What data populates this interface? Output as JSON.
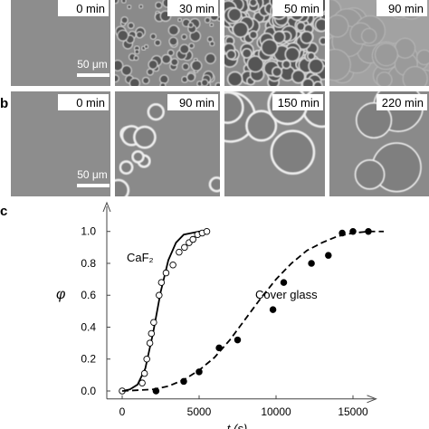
{
  "image_rows": [
    {
      "times": [
        "0 min",
        "30 min",
        "50 min",
        "90 min"
      ],
      "scale_bar": "50 μm"
    },
    {
      "label": "b",
      "times": [
        "0 min",
        "90 min",
        "150 min",
        "220 min"
      ],
      "scale_bar": "50 μm"
    }
  ],
  "chart_data": {
    "type": "scatter",
    "panel_label": "c",
    "xlabel": "t (s)",
    "ylabel": "φ",
    "xlim": [
      -1000,
      16500
    ],
    "ylim": [
      -0.05,
      1.18
    ],
    "xticks": [
      0,
      5000,
      10000,
      15000
    ],
    "yticks": [
      {
        "value": 0,
        "label": "0.0"
      },
      {
        "value": 0.2,
        "label": "0.2"
      },
      {
        "value": 0.4,
        "label": "0.4"
      },
      {
        "value": 0.6,
        "label": "0.6"
      },
      {
        "value": 0.8,
        "label": "0.8"
      },
      {
        "value": 1,
        "label": "1.0"
      }
    ],
    "series": [
      {
        "name": "CaF₂",
        "marker": "open",
        "color": "#000000",
        "line": "solid",
        "x": [
          0,
          1300,
          1450,
          1600,
          1800,
          1900,
          2050,
          2400,
          2550,
          2850,
          3300,
          3700,
          4050,
          4350,
          4600,
          4900,
          5200,
          5500
        ],
        "values": [
          0,
          0.05,
          0.11,
          0.2,
          0.3,
          0.36,
          0.43,
          0.6,
          0.68,
          0.74,
          0.79,
          0.87,
          0.9,
          0.93,
          0.95,
          0.98,
          0.99,
          1.0
        ],
        "fit": {
          "x": [
            0,
            500,
            1000,
            1500,
            2000,
            2500,
            3000,
            3500,
            4000,
            4500,
            5000,
            5500
          ],
          "values": [
            0,
            0.01,
            0.04,
            0.14,
            0.36,
            0.62,
            0.82,
            0.93,
            0.98,
            0.99,
            1.0,
            1.0
          ]
        }
      },
      {
        "name": "Cover glass",
        "marker": "filled",
        "color": "#000000",
        "line": "dashed",
        "x": [
          2200,
          4000,
          5000,
          6300,
          7500,
          9800,
          10500,
          12300,
          13400,
          14300,
          15000,
          16000
        ],
        "values": [
          0,
          0.06,
          0.12,
          0.27,
          0.32,
          0.51,
          0.68,
          0.8,
          0.85,
          0.99,
          1.0,
          1.0
        ],
        "fit": {
          "x": [
            0,
            2000,
            3000,
            4000,
            5000,
            6000,
            7000,
            8000,
            9000,
            10000,
            11000,
            12000,
            13000,
            14000,
            15000,
            16000,
            17000
          ],
          "values": [
            0,
            0.01,
            0.03,
            0.07,
            0.13,
            0.21,
            0.32,
            0.45,
            0.58,
            0.7,
            0.8,
            0.88,
            0.93,
            0.97,
            0.99,
            1.0,
            1.0
          ]
        }
      }
    ]
  }
}
